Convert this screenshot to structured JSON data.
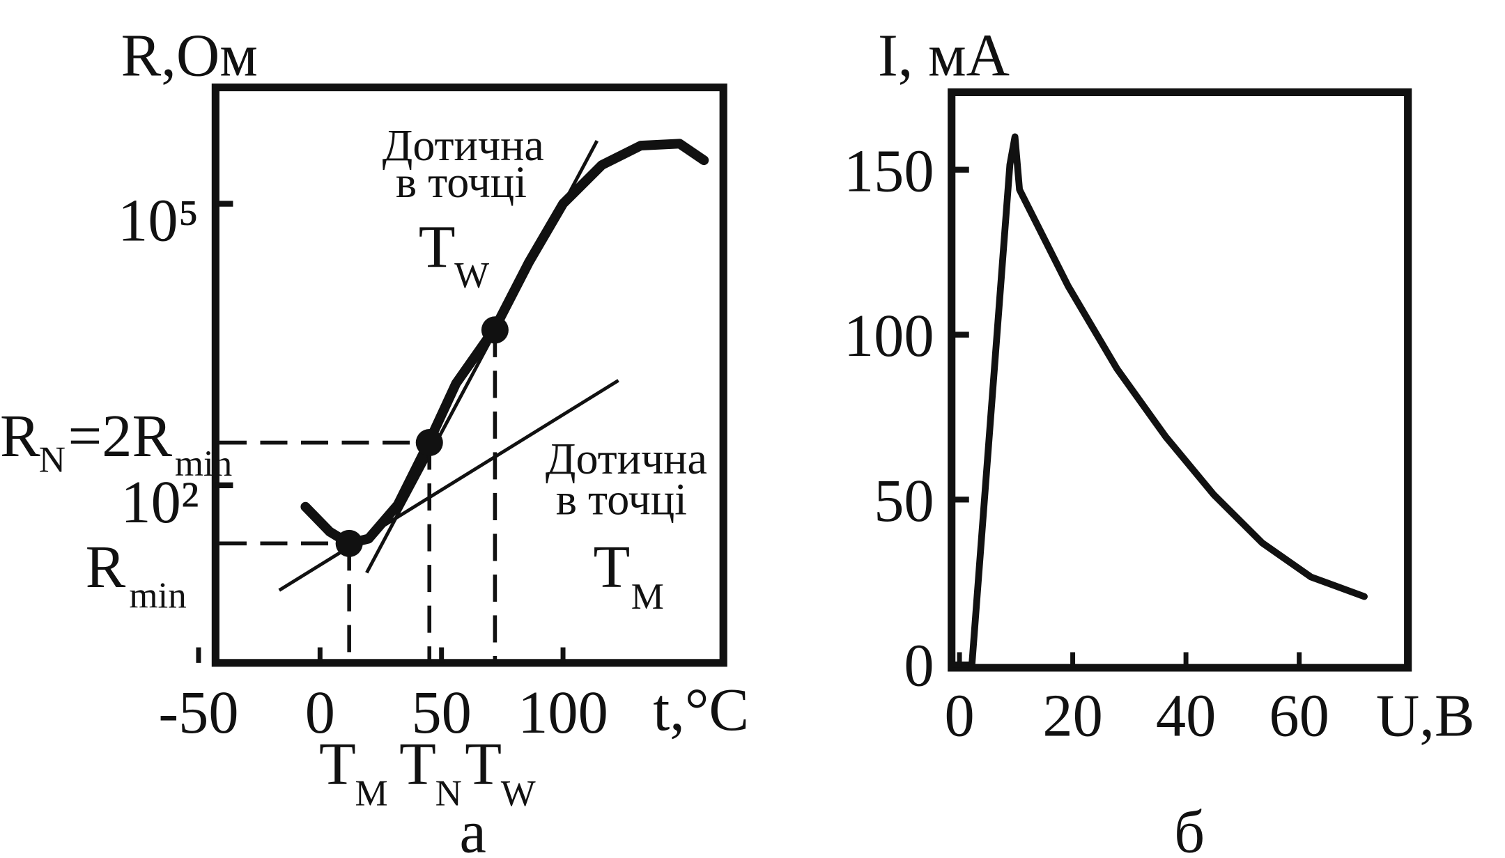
{
  "chart_data": [
    {
      "type": "line",
      "y_label": "R,Ом",
      "x_label": "t,°C",
      "caption": "а",
      "log_y": true,
      "xlim": [
        -43,
        166
      ],
      "ylim": [
        1.28,
        1740000
      ],
      "xticks": [
        -50,
        0,
        50,
        100
      ],
      "yticks": [
        {
          "value": 100000,
          "label": "10⁵"
        },
        {
          "value": 100,
          "label": "10²"
        }
      ],
      "series": [
        {
          "color": "#111111",
          "x": [
            -6,
            4,
            12,
            20,
            32,
            44,
            56,
            72,
            86,
            100,
            116,
            132,
            148,
            158
          ],
          "values": [
            59,
            32,
            24,
            27,
            62,
            260,
            1220,
            4730,
            23900,
            100000,
            259000,
            417000,
            437000,
            291000
          ]
        }
      ],
      "tangents": [
        {
          "x": [
            -16.8,
            122.8
          ],
          "values": [
            7.6,
            1310
          ]
        },
        {
          "x": [
            19.2,
            114
          ],
          "values": [
            11.7,
            469000
          ]
        }
      ],
      "points": [
        {
          "x": 12,
          "value": 24
        },
        {
          "x": 45,
          "value": 285
        },
        {
          "x": 72,
          "value": 4520
        }
      ],
      "annotations": {
        "tangent_w": [
          "Дотична",
          "в точці",
          "T",
          "W"
        ],
        "tangent_m": [
          "Дотична",
          "в точці",
          "T",
          "M"
        ],
        "rn": [
          "R",
          "N",
          "=2R",
          "min"
        ],
        "rmin": [
          "R",
          "min"
        ],
        "t_markers": [
          [
            "T",
            "M"
          ],
          [
            "T",
            "N"
          ],
          [
            "T",
            "W"
          ]
        ]
      }
    },
    {
      "type": "line",
      "y_label": "I, мА",
      "x_label": "U,В",
      "caption": "б",
      "xlim": [
        -1.4,
        79.2
      ],
      "ylim": [
        -1,
        173.5
      ],
      "xticks": [
        0,
        20,
        40,
        60
      ],
      "yticks": [
        0,
        50,
        100,
        150
      ],
      "series": [
        {
          "color": "#111111",
          "x": [
            2.2,
            8.9,
            9.8,
            10.6,
            19.2,
            27.8,
            36.4,
            44.9,
            53.5,
            62.1,
            71.5
          ],
          "values": [
            0,
            151.5,
            160,
            144,
            114.7,
            89.7,
            69.1,
            51.5,
            36.8,
            26.5,
            20.6
          ]
        }
      ]
    }
  ]
}
